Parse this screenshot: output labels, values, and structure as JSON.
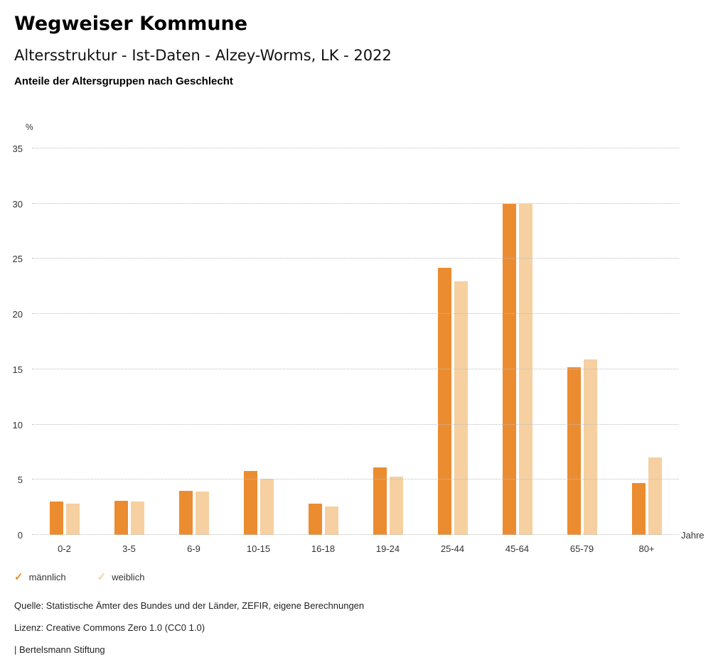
{
  "header": {
    "title": "Wegweiser Kommune",
    "subtitle": "Altersstruktur - Ist-Daten - Alzey-Worms, LK - 2022",
    "chart_title": "Anteile der Altersgruppen nach Geschlecht"
  },
  "chart_data": {
    "type": "bar",
    "categories": [
      "0-2",
      "3-5",
      "6-9",
      "10-15",
      "16-18",
      "19-24",
      "25-44",
      "45-64",
      "65-79",
      "80+"
    ],
    "series": [
      {
        "name": "männlich",
        "color": "#EC8C30",
        "values": [
          3.0,
          3.1,
          4.0,
          5.8,
          2.8,
          6.1,
          24.2,
          30.0,
          15.2,
          4.7
        ]
      },
      {
        "name": "weiblich",
        "color": "#F6D0A0",
        "values": [
          2.8,
          3.0,
          3.9,
          5.1,
          2.6,
          5.3,
          23.0,
          30.0,
          15.9,
          7.0
        ]
      }
    ],
    "ylabel": "%",
    "xlabel": "Jahre",
    "ylim": [
      0,
      35
    ],
    "yticks": [
      0,
      5,
      10,
      15,
      20,
      25,
      30,
      35
    ],
    "grid": "dotted horizontal",
    "legend_position": "bottom-left"
  },
  "footer": {
    "source": "Quelle: Statistische Ämter des Bundes und der Länder, ZEFIR, eigene Berechnungen",
    "license": "Lizenz: Creative Commons Zero 1.0 (CC0 1.0)",
    "attribution": "| Bertelsmann Stiftung"
  }
}
